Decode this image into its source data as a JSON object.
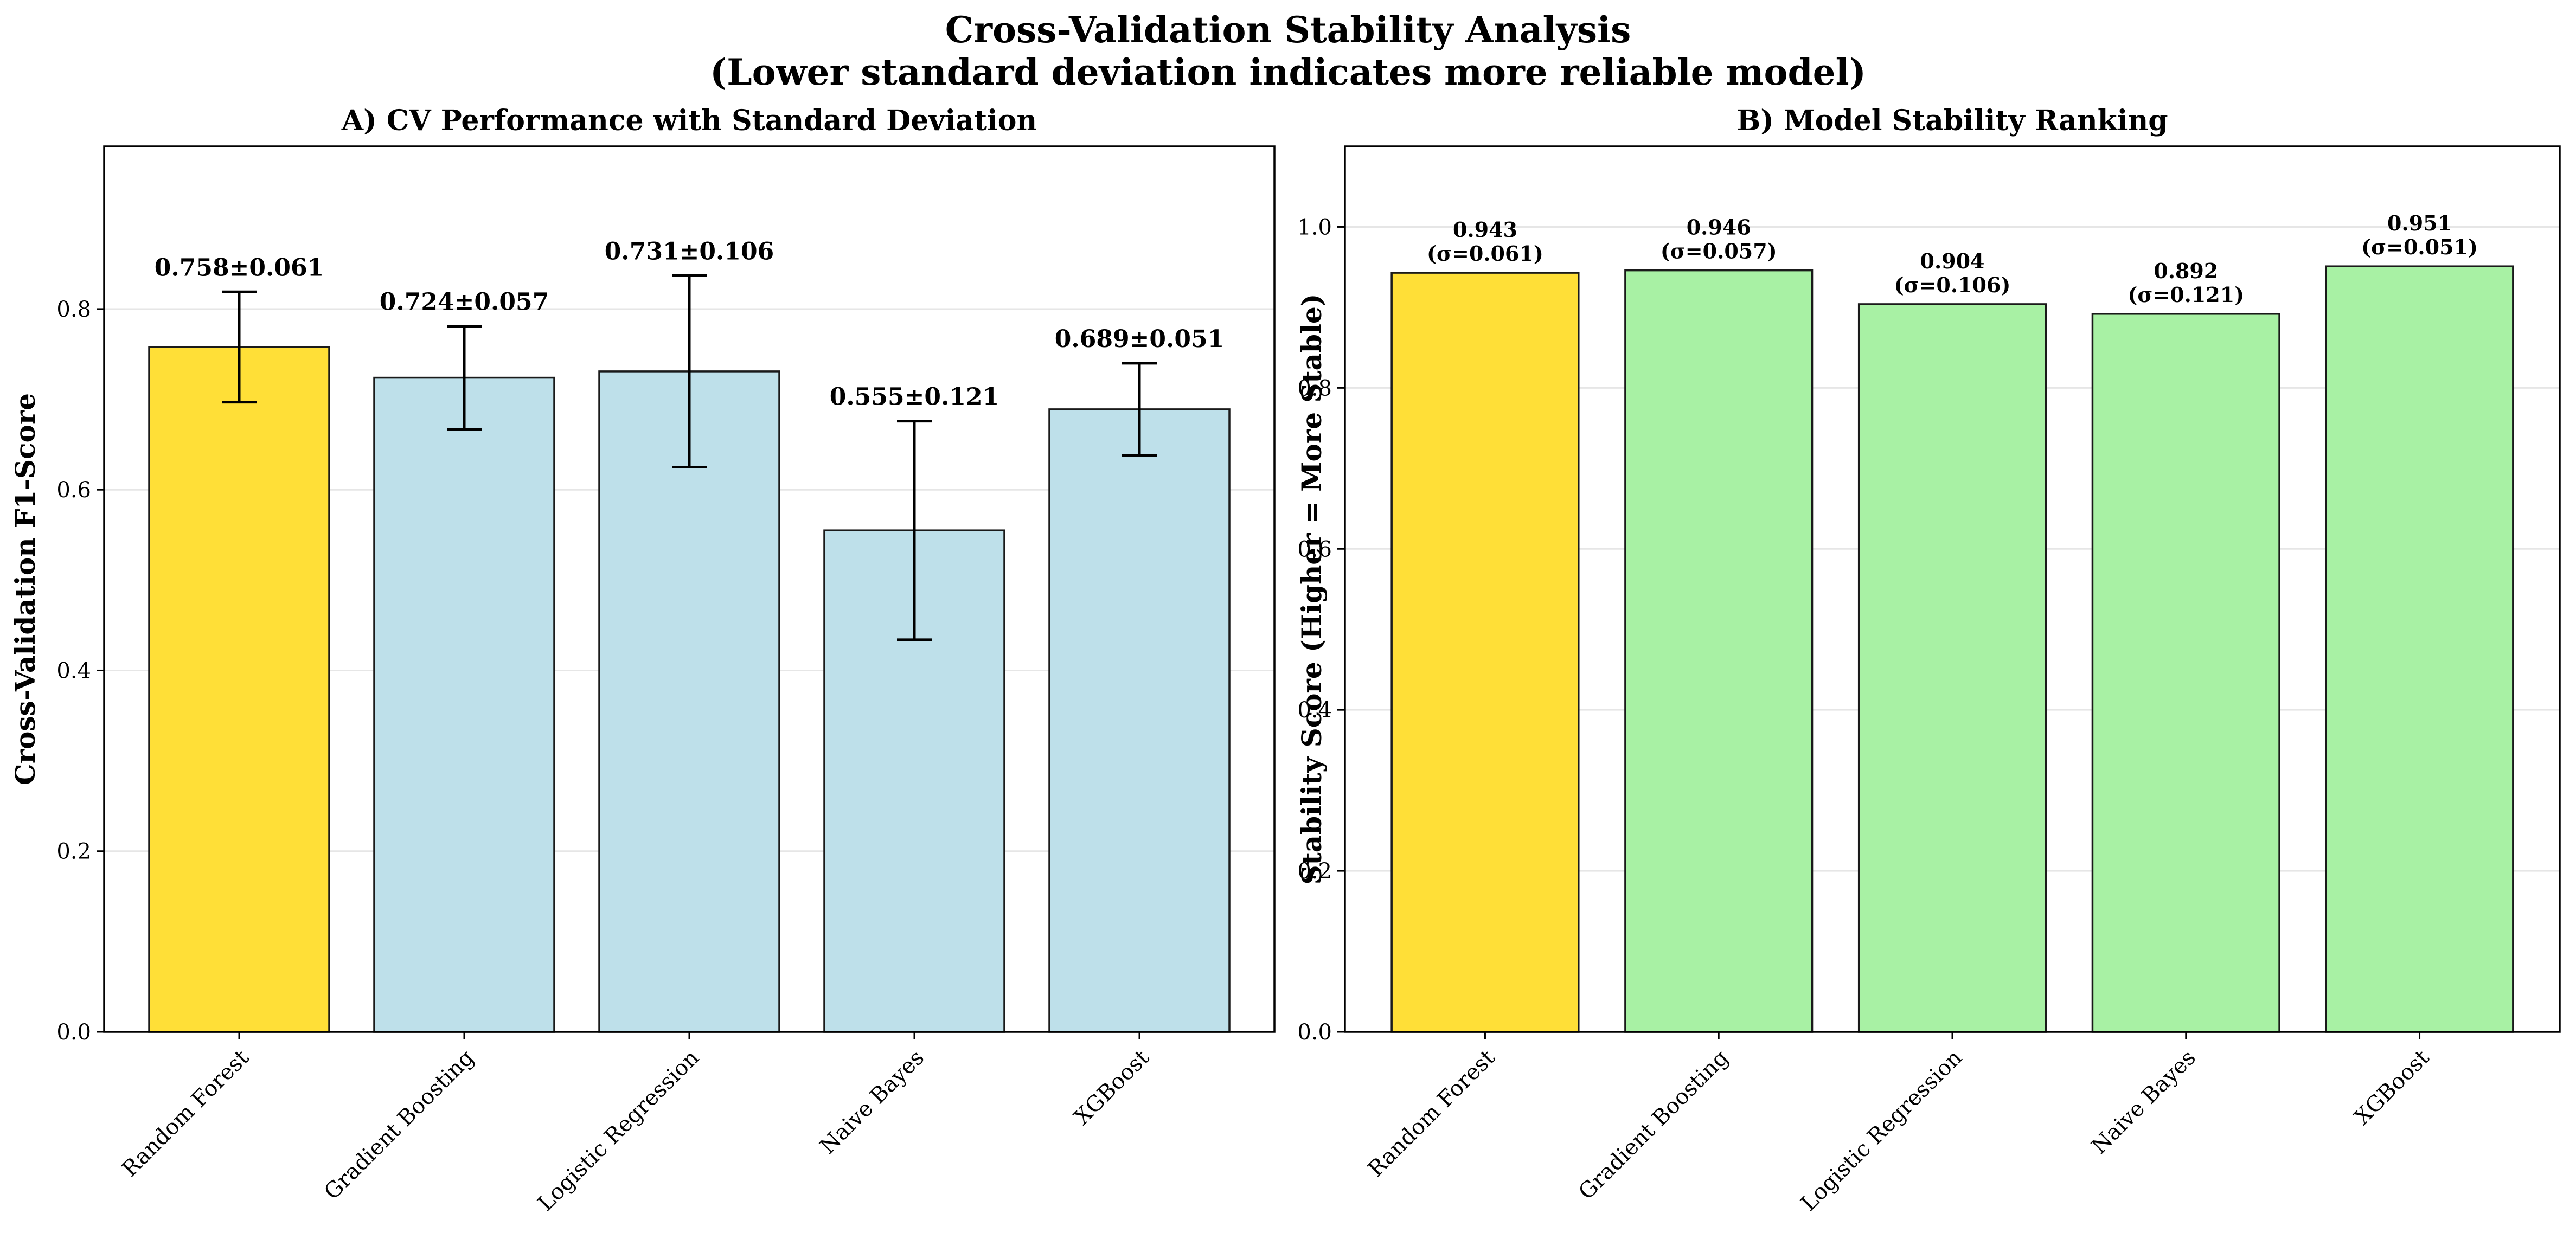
{
  "figure": {
    "title_line1": "Cross-Validation Stability Analysis",
    "title_line2": "(Lower standard deviation indicates more reliable model)"
  },
  "colors": {
    "highlight": "#FFDF37",
    "panel_a_bar": "#BEE0EA",
    "panel_b_bar": "#A8F1A4",
    "edge": "#1a1a1a",
    "grid": "#e6e6e6"
  },
  "chart_data": [
    {
      "id": "A",
      "type": "bar",
      "title": "A) CV Performance with Standard Deviation",
      "ylabel": "Cross-Validation F1-Score",
      "xlabel": "",
      "categories": [
        "Random Forest",
        "Gradient Boosting",
        "Logistic Regression",
        "Naive Bayes",
        "XGBoost"
      ],
      "values": [
        0.758,
        0.724,
        0.731,
        0.555,
        0.689
      ],
      "errors": [
        0.061,
        0.057,
        0.106,
        0.121,
        0.051
      ],
      "bar_labels": [
        "0.758±0.061",
        "0.724±0.057",
        "0.731±0.106",
        "0.555±0.121",
        "0.689±0.051"
      ],
      "highlight_index": 0,
      "ylim": [
        0,
        0.98
      ],
      "yticks": [
        0.0,
        0.2,
        0.4,
        0.6,
        0.8
      ],
      "ytick_labels": [
        "0.0",
        "0.2",
        "0.4",
        "0.6",
        "0.8"
      ],
      "grid": true
    },
    {
      "id": "B",
      "type": "bar",
      "title": "B) Model Stability Ranking",
      "ylabel": "Stability Score (Higher = More Stable)",
      "xlabel": "",
      "categories": [
        "Random Forest",
        "Gradient Boosting",
        "Logistic Regression",
        "Naive Bayes",
        "XGBoost"
      ],
      "values": [
        0.943,
        0.946,
        0.904,
        0.892,
        0.951
      ],
      "bar_labels": [
        [
          "0.943",
          "(σ=0.061)"
        ],
        [
          "0.946",
          "(σ=0.057)"
        ],
        [
          "0.904",
          "(σ=0.106)"
        ],
        [
          "0.892",
          "(σ=0.121)"
        ],
        [
          "0.951",
          "(σ=0.051)"
        ]
      ],
      "highlight_index": 0,
      "ylim": [
        0,
        1.1
      ],
      "yticks": [
        0.0,
        0.2,
        0.4,
        0.6,
        0.8,
        1.0
      ],
      "ytick_labels": [
        "0.0",
        "0.2",
        "0.4",
        "0.6",
        "0.8",
        "1.0"
      ],
      "grid": true
    }
  ]
}
